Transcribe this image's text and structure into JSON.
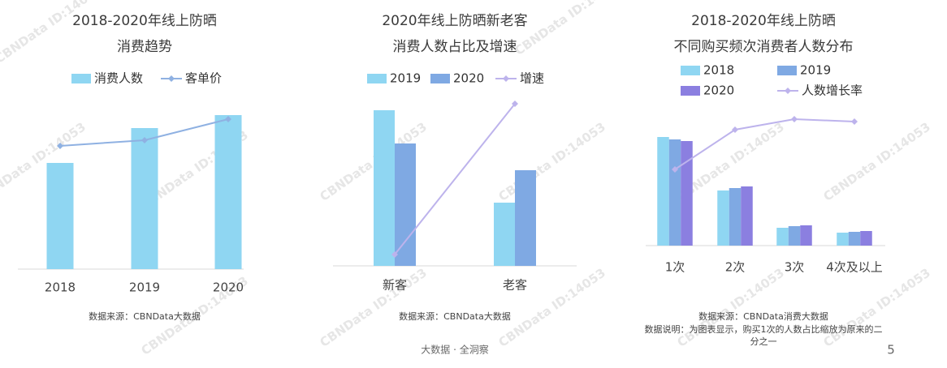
{
  "watermark": "CBNData ID:14053",
  "footer": "大数据 · 全洞察",
  "page_number": "5",
  "chart_data": [
    {
      "type": "bar",
      "title": [
        "2018-2020年线上防晒",
        "消费趋势"
      ],
      "categories": [
        "2018",
        "2019",
        "2020"
      ],
      "series": [
        {
          "name": "消费人数",
          "color": "#8fd6f2",
          "values": [
            131,
            174,
            190
          ]
        },
        {
          "name": "客单价",
          "color": "#8fb1e2",
          "type": "line",
          "axis": "y2",
          "values": [
            152,
            159,
            185
          ]
        }
      ],
      "ylim": [
        0,
        200
      ],
      "y2lim": [
        0,
        200
      ],
      "source": "数据来源：CBNData大数据"
    },
    {
      "type": "bar",
      "title": [
        "2020年线上防晒新老客",
        "消费人数占比及增速"
      ],
      "categories": [
        "新客",
        "老客"
      ],
      "series": [
        {
          "name": "2019",
          "color": "#8fd6f2",
          "values": [
            192,
            78
          ]
        },
        {
          "name": "2020",
          "color": "#7fa9e3",
          "values": [
            151,
            118
          ]
        },
        {
          "name": "增速",
          "color": "#bdb3ec",
          "type": "line",
          "axis": "y2",
          "values": [
            14,
            200
          ]
        }
      ],
      "ylim": [
        0,
        200
      ],
      "y2lim": [
        0,
        200
      ],
      "source": "数据来源：CBNData大数据"
    },
    {
      "type": "bar",
      "title": [
        "2018-2020年线上防晒",
        "不同购买频次消费者人数分布"
      ],
      "categories": [
        "1次",
        "2次",
        "3次",
        "4次及以上"
      ],
      "series": [
        {
          "name": "2018",
          "color": "#8fd6f2",
          "values": [
            134,
            68,
            22,
            16
          ]
        },
        {
          "name": "2019",
          "color": "#7fa9e3",
          "values": [
            131,
            71,
            24,
            17
          ]
        },
        {
          "name": "2020",
          "color": "#8b7fe0",
          "values": [
            129,
            73,
            25,
            18
          ]
        },
        {
          "name": "人数增长率",
          "color": "#bdb3ec",
          "type": "line",
          "axis": "y2",
          "values": [
            94,
            143,
            156,
            153
          ]
        }
      ],
      "ylim": [
        0,
        200
      ],
      "y2lim": [
        0,
        200
      ],
      "source": "数据来源：CBNData消费大数据",
      "note": [
        "数据说明：为图表显示，购买1次的人数占比缩放为原来的二",
        "分之一"
      ]
    }
  ]
}
